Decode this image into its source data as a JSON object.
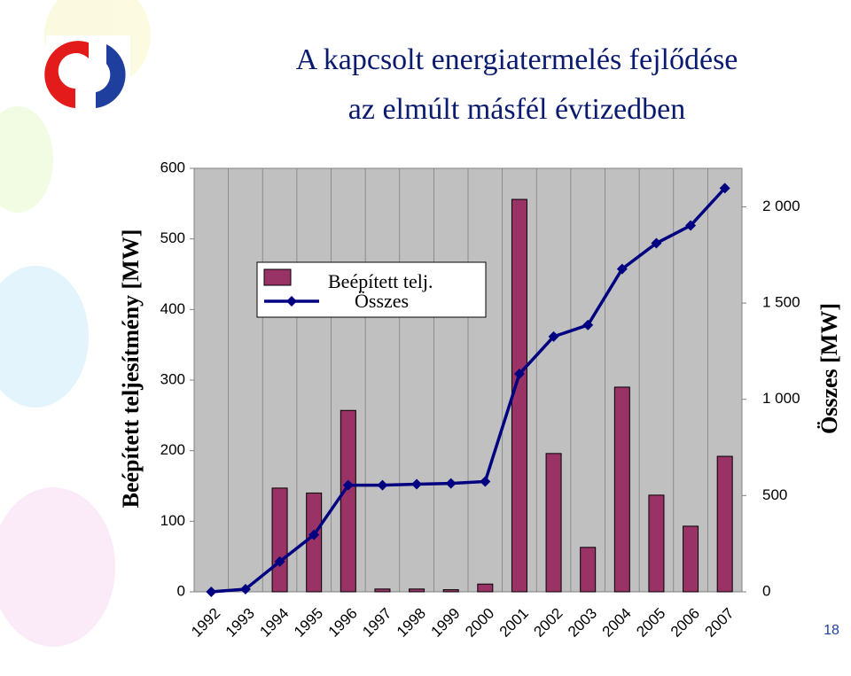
{
  "chart_data": {
    "type": "bar_line",
    "title": "A kapcsolt energiatermelés fejlődése",
    "subtitle": "az elmúlt másfél évtizedben",
    "y_label": "Beépített teljesítmény [MW]",
    "y2_label": "Összes [MW]",
    "categories": [
      "1992",
      "1993",
      "1994",
      "1995",
      "1996",
      "1997",
      "1998",
      "1999",
      "2000",
      "2001",
      "2002",
      "2003",
      "2004",
      "2005",
      "2006",
      "2007"
    ],
    "series": [
      {
        "name": "Beépített telj.",
        "type": "bar",
        "color": "#993366",
        "values": [
          0,
          0,
          147,
          140,
          257,
          4,
          4,
          3,
          11,
          556,
          196,
          63,
          290,
          137,
          93,
          192
        ]
      },
      {
        "name": "Összes",
        "type": "line",
        "axis": "y2",
        "color": "#000080",
        "values": [
          0,
          14,
          157,
          296,
          554,
          554,
          559,
          563,
          573,
          1132,
          1326,
          1386,
          1677,
          1811,
          1903,
          2097
        ]
      }
    ],
    "ylim": [
      0,
      600
    ],
    "yticks": [
      0,
      100,
      200,
      300,
      400,
      500,
      600
    ],
    "y2lim": [
      0,
      2200
    ],
    "y2ticks": [
      0,
      500,
      {
        "value": 1000,
        "label": "1 000"
      },
      {
        "value": 1500,
        "label": "1 500"
      },
      {
        "value": 2000,
        "label": "2 000"
      }
    ],
    "page_number": "18"
  }
}
